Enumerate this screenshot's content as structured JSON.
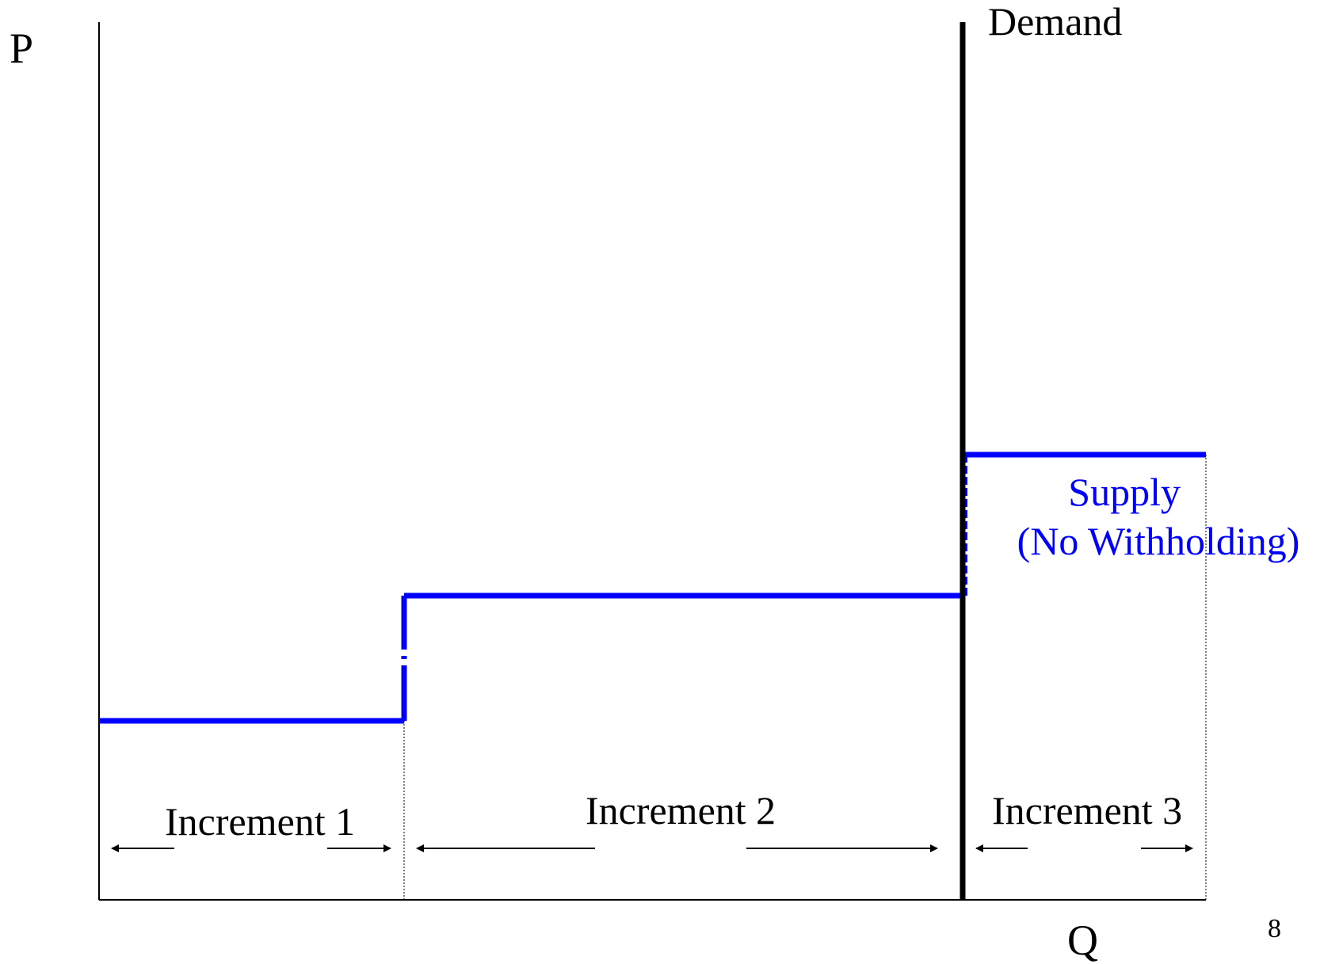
{
  "axes": {
    "y_label": "P",
    "x_label": "Q"
  },
  "demand": {
    "label": "Demand",
    "color": "#000000"
  },
  "supply": {
    "label_line1": "Supply",
    "label_line2": "(No Withholding)",
    "color": "#0000ff"
  },
  "increments": [
    {
      "label": "Increment 1"
    },
    {
      "label": "Increment 2"
    },
    {
      "label": "Increment 3"
    }
  ],
  "page_number": "8"
}
